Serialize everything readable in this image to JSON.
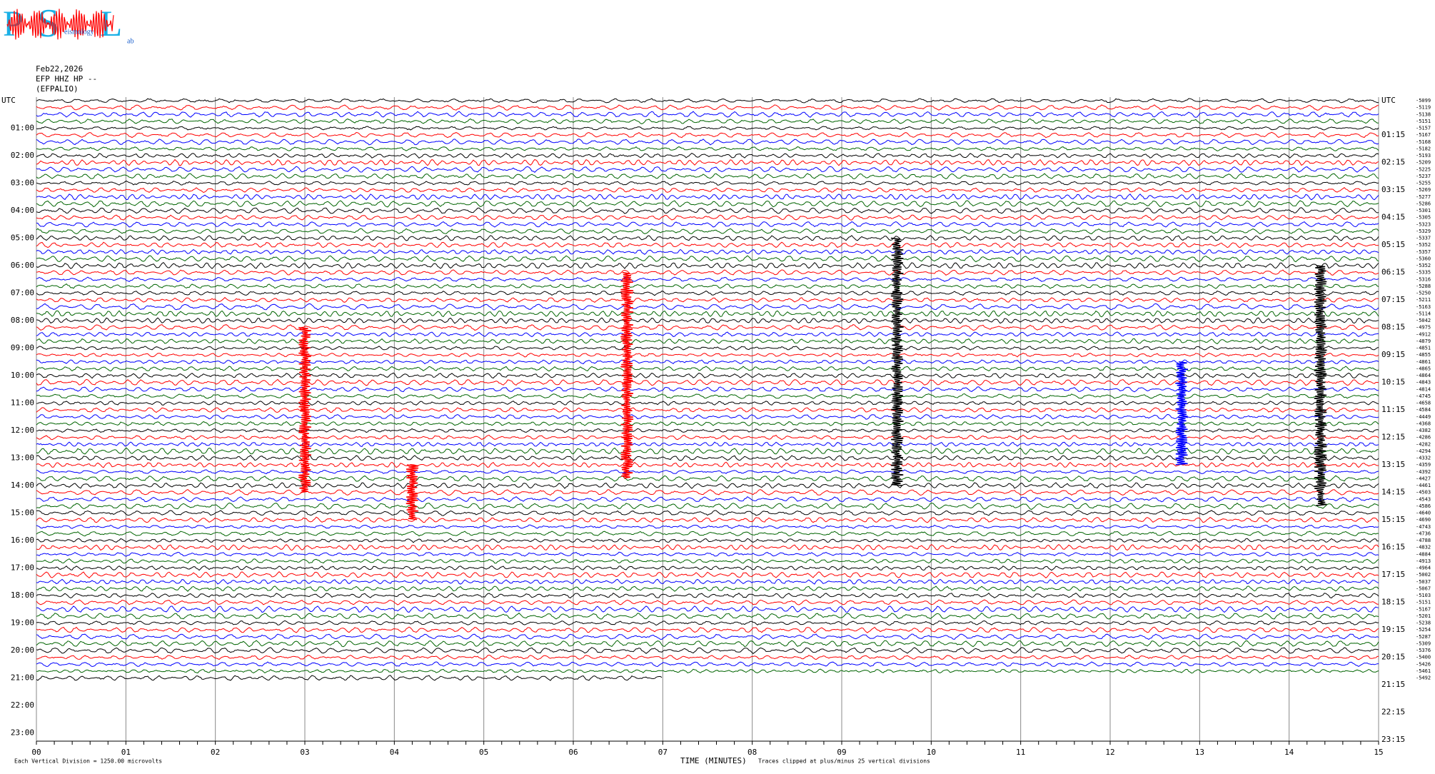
{
  "chart_data": {
    "type": "helicorder",
    "logo": {
      "letters": [
        "P",
        "S",
        "L"
      ],
      "small": [
        "eismology",
        "ab"
      ]
    },
    "header": [
      "Feb22,2026",
      "EFP HHZ HP --",
      "(EFPALIO)"
    ],
    "left_labels": [
      "UTC",
      "01:00",
      "02:00",
      "03:00",
      "04:00",
      "05:00",
      "06:00",
      "07:00",
      "08:00",
      "09:00",
      "10:00",
      "11:00",
      "12:00",
      "13:00",
      "14:00",
      "15:00",
      "16:00",
      "17:00",
      "18:00",
      "19:00",
      "20:00",
      "21:00",
      "22:00",
      "23:00"
    ],
    "right_labels": [
      "UTC",
      "01:15",
      "02:15",
      "03:15",
      "04:15",
      "05:15",
      "06:15",
      "07:15",
      "08:15",
      "09:15",
      "10:15",
      "11:15",
      "12:15",
      "13:15",
      "14:15",
      "15:15",
      "16:15",
      "17:15",
      "18:15",
      "19:15",
      "20:15",
      "21:15",
      "22:15",
      "23:15"
    ],
    "row_labels": [
      "-5099",
      "-5119",
      "-5138",
      "-5151",
      "-5157",
      "-5167",
      "-5168",
      "-5182",
      "-5193",
      "-5209",
      "-5225",
      "-5237",
      "-5255",
      "-5269",
      "-5277",
      "-5286",
      "-5301",
      "-5305",
      "-5323",
      "-5329",
      "-5337",
      "-5352",
      "-5357",
      "-5360",
      "-5352",
      "-5335",
      "-5316",
      "-5288",
      "-5250",
      "-5211",
      "-5163",
      "-5114",
      "-5042",
      "-4975",
      "-4912",
      "-4879",
      "-4851",
      "-4855",
      "-4861",
      "-4865",
      "-4864",
      "-4843",
      "-4814",
      "-4745",
      "-4658",
      "-4584",
      "-4449",
      "-4368",
      "-4382",
      "-4286",
      "-4282",
      "-4294",
      "-4332",
      "-4359",
      "-4392",
      "-4427",
      "-4461",
      "-4503",
      "-4543",
      "-4586",
      "-4640",
      "-4690",
      "-4743",
      "-4736",
      "-4788",
      "-4832",
      "-4884",
      "-4913",
      "-4964",
      "-5002",
      "-5037",
      "-5067",
      "-5103",
      "-5151",
      "-5167",
      "-5201",
      "-5238",
      "-5254",
      "-5287",
      "-5309",
      "-5376",
      "-5400",
      "-5426",
      "-5461",
      "-5492"
    ],
    "trace_colors": [
      "#000000",
      "#ff0000",
      "#0000ff",
      "#006400"
    ],
    "last_row_end_minute": 7,
    "xlim": [
      0,
      15
    ],
    "xticks": [
      {
        "value": 0,
        "label": "00"
      },
      {
        "value": 1,
        "label": "01"
      },
      {
        "value": 2,
        "label": "02"
      },
      {
        "value": 3,
        "label": "03"
      },
      {
        "value": 4,
        "label": "04"
      },
      {
        "value": 5,
        "label": "05"
      },
      {
        "value": 6,
        "label": "06"
      },
      {
        "value": 7,
        "label": "07"
      },
      {
        "value": 8,
        "label": "08"
      },
      {
        "value": 9,
        "label": "09"
      },
      10,
      11,
      12,
      13,
      14,
      15
    ],
    "xlabel": "TIME (MINUTES)",
    "footer_left": "Each Vertical Division = 1250.00 microvolts",
    "footer_right": "Traces clipped at plus/minus 25 vertical divisions",
    "events": [
      {
        "minute": 3.0,
        "rows": [
          33,
          57
        ]
      },
      {
        "minute": 6.6,
        "rows": [
          25,
          55
        ]
      },
      {
        "minute": 9.62,
        "rows": [
          20,
          56
        ]
      },
      {
        "minute": 12.8,
        "rows": [
          38,
          53
        ]
      },
      {
        "minute": 14.35,
        "rows": [
          24,
          59
        ]
      },
      {
        "minute": 4.2,
        "rows": [
          53,
          61
        ]
      }
    ]
  }
}
